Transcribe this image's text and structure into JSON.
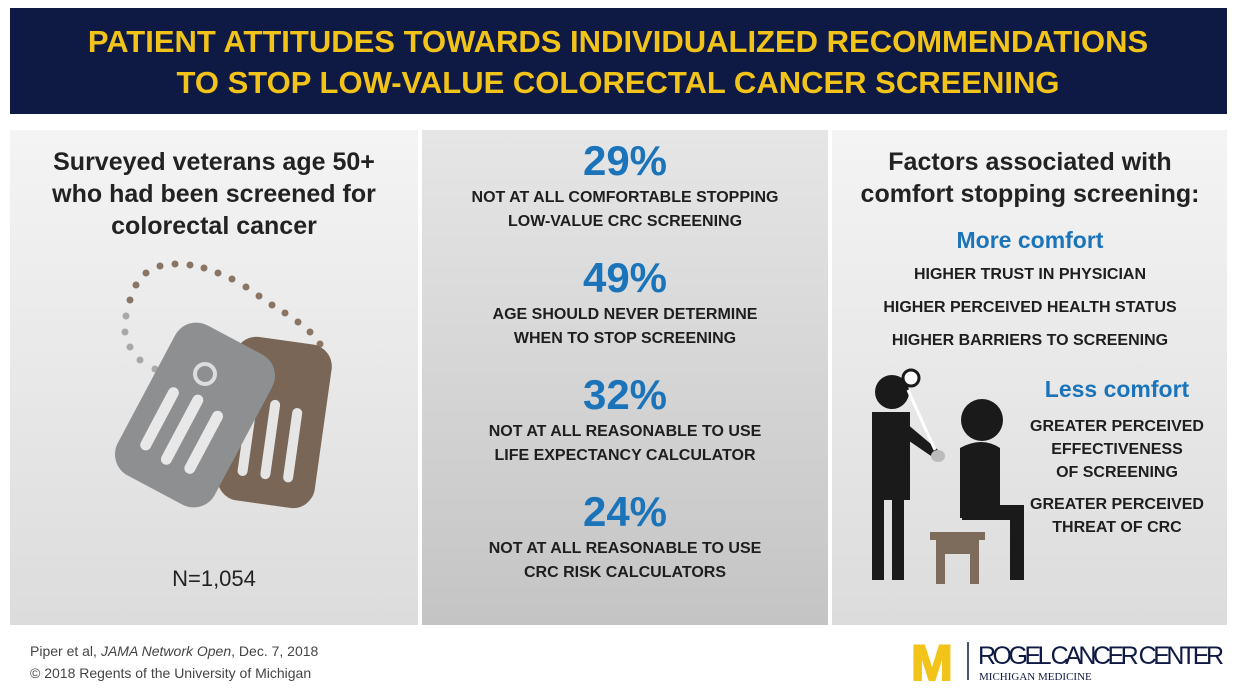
{
  "header": {
    "title_lines": [
      "PATIENT ATTITUDES TOWARDS INDIVIDUALIZED RECOMMENDATIONS",
      "TO STOP LOW-VALUE COLORECTAL CANCER SCREENING"
    ]
  },
  "left_panel": {
    "heading_lines": [
      "Surveyed veterans age 50+",
      "who had been screened for",
      "colorectal cancer"
    ],
    "sample_size": "N=1,054"
  },
  "middle_panel": {
    "stats": [
      {
        "value": "29%",
        "description_lines": [
          "NOT AT ALL COMFORTABLE STOPPING",
          "LOW-VALUE CRC SCREENING"
        ]
      },
      {
        "value": "49%",
        "description_lines": [
          "AGE SHOULD NEVER DETERMINE",
          "WHEN TO STOP SCREENING"
        ]
      },
      {
        "value": "32%",
        "description_lines": [
          "NOT AT ALL REASONABLE TO USE",
          "LIFE EXPECTANCY CALCULATOR"
        ]
      },
      {
        "value": "24%",
        "description_lines": [
          "NOT AT ALL REASONABLE TO USE",
          "CRC RISK CALCULATORS"
        ]
      }
    ]
  },
  "right_panel": {
    "heading_lines": [
      "Factors associated with",
      "comfort stopping screening:"
    ],
    "more_comfort": {
      "heading": "More comfort",
      "items": [
        "HIGHER TRUST IN PHYSICIAN",
        "HIGHER PERCEIVED HEALTH STATUS",
        "HIGHER BARRIERS TO SCREENING"
      ]
    },
    "less_comfort": {
      "heading": "Less comfort",
      "items_lines": [
        [
          "GREATER PERCEIVED",
          "EFFECTIVENESS",
          "OF SCREENING"
        ],
        [
          "GREATER PERCEIVED",
          "THREAT OF CRC"
        ]
      ]
    }
  },
  "footer": {
    "citation": {
      "authors": "Piper et al,",
      "journal": "JAMA Network Open",
      "date": ", Dec. 7, 2018"
    },
    "copyright": "© 2018 Regents of the University of Michigan",
    "logo": {
      "mark": "M",
      "name": "ROGEL CANCER CENTER",
      "subtitle": "MICHIGAN MEDICINE"
    }
  }
}
